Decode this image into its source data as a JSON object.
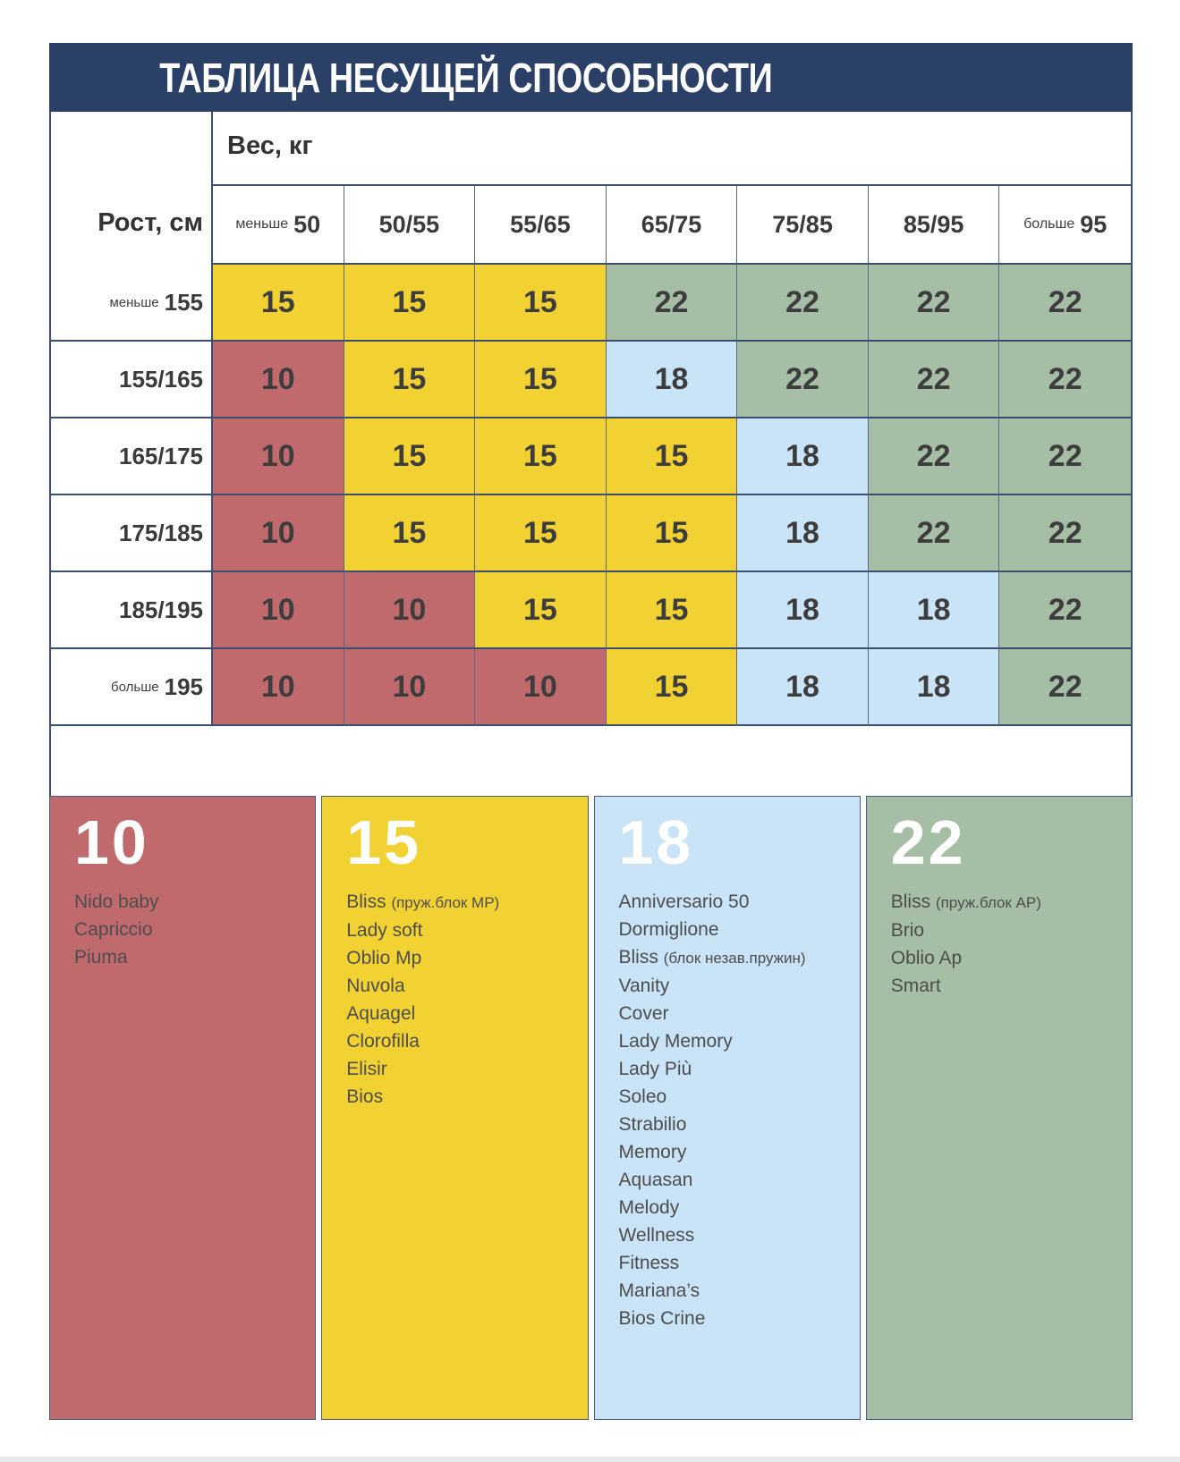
{
  "title": "ТАБЛИЦА НЕСУЩЕЙ СПОСОБНОСТИ",
  "table": {
    "weight_label": "Вес, кг",
    "corner_label": "Рост, см",
    "col_headers": [
      {
        "prefix": "меньше",
        "strong": "50"
      },
      {
        "strong": "50/55"
      },
      {
        "strong": "55/65"
      },
      {
        "strong": "65/75"
      },
      {
        "strong": "75/85"
      },
      {
        "strong": "85/95"
      },
      {
        "prefix": "больше",
        "strong": "95"
      }
    ],
    "row_headers": [
      {
        "prefix": "меньше",
        "strong": "155"
      },
      {
        "strong": "155/165"
      },
      {
        "strong": "165/175"
      },
      {
        "strong": "175/185"
      },
      {
        "strong": "185/195"
      },
      {
        "prefix": "больше",
        "strong": "195"
      }
    ]
  },
  "chart_data": {
    "type": "heatmap",
    "title": "ТАБЛИЦА НЕСУЩЕЙ СПОСОБНОСТИ",
    "xlabel": "Вес, кг",
    "ylabel": "Рост, см",
    "columns": [
      "меньше 50",
      "50/55",
      "55/65",
      "65/75",
      "75/85",
      "85/95",
      "больше 95"
    ],
    "rows": [
      "меньше 155",
      "155/165",
      "165/175",
      "175/185",
      "185/195",
      "больше 195"
    ],
    "values": [
      [
        15,
        15,
        15,
        22,
        22,
        22,
        22
      ],
      [
        10,
        15,
        15,
        18,
        22,
        22,
        22
      ],
      [
        10,
        15,
        15,
        15,
        18,
        22,
        22
      ],
      [
        10,
        15,
        15,
        15,
        18,
        22,
        22
      ],
      [
        10,
        10,
        15,
        15,
        18,
        18,
        22
      ],
      [
        10,
        10,
        10,
        15,
        18,
        18,
        22
      ]
    ],
    "value_colors": {
      "10": "#c06a6e",
      "15": "#f2d232",
      "18": "#c9e3f7",
      "22": "#a6bea5"
    }
  },
  "legend": {
    "groups": [
      {
        "value": "10",
        "items": [
          {
            "name": "Nido baby"
          },
          {
            "name": "Capriccio"
          },
          {
            "name": "Piuma"
          }
        ]
      },
      {
        "value": "15",
        "items": [
          {
            "name": "Bliss",
            "note": "(пруж.блок MP)"
          },
          {
            "name": "Lady soft"
          },
          {
            "name": "Oblio Mp"
          },
          {
            "name": "Nuvola"
          },
          {
            "name": "Aquagel"
          },
          {
            "name": "Clorofilla"
          },
          {
            "name": "Elisir"
          },
          {
            "name": "Bios"
          }
        ]
      },
      {
        "value": "18",
        "items": [
          {
            "name": "Anniversario 50"
          },
          {
            "name": "Dormiglione"
          },
          {
            "name": "Bliss",
            "note": "(блок незав.пружин)"
          },
          {
            "name": "Vanity"
          },
          {
            "name": "Cover"
          },
          {
            "name": "Lady Memory"
          },
          {
            "name": "Lady Più"
          },
          {
            "name": "Soleo"
          },
          {
            "name": "Strabilio"
          },
          {
            "name": "Memory"
          },
          {
            "name": "Aquasan"
          },
          {
            "name": "Melody"
          },
          {
            "name": "Wellness"
          },
          {
            "name": "Fitness"
          },
          {
            "name": "Mariana’s"
          },
          {
            "name": "Bios Crine"
          }
        ]
      },
      {
        "value": "22",
        "items": [
          {
            "name": "Bliss",
            "note": "(пруж.блок AP)"
          },
          {
            "name": "Brio"
          },
          {
            "name": "Oblio Ap"
          },
          {
            "name": "Smart"
          }
        ]
      }
    ]
  },
  "colors": {
    "header_bar": "#2b4066",
    "border_heavy": "#3a4e70",
    "border_light": "#5a6880",
    "red": "#c06a6e",
    "yellow": "#f2d232",
    "blue": "#c9e3f7",
    "green": "#a6bea5",
    "cell_text": "#3d3d3d",
    "bottom_strip": "#e7eaee"
  }
}
